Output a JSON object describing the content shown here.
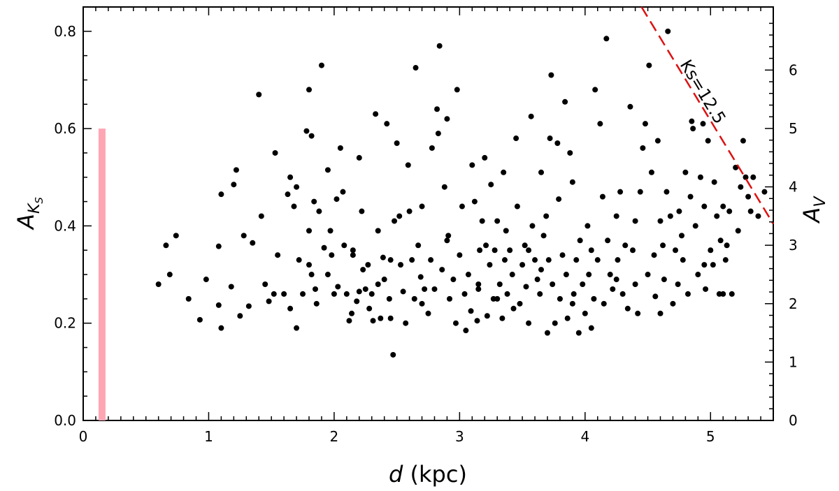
{
  "chart_data": {
    "type": "scatter",
    "title": "",
    "xlabel": {
      "italic": "d",
      "normal": " (kpc)"
    },
    "ylabel_left": {
      "main": "A",
      "sub": "K",
      "subsub": "S"
    },
    "ylabel_right": {
      "main": "A",
      "sub": "V"
    },
    "xlim": [
      0,
      5.5
    ],
    "ylim": [
      0,
      0.85
    ],
    "ylim_right": [
      0,
      7.08
    ],
    "x_ticks": [
      0,
      1,
      2,
      3,
      4,
      5
    ],
    "x_tick_labels": [
      "0",
      "1",
      "2",
      "3",
      "4",
      "5"
    ],
    "y_ticks": [
      0.0,
      0.2,
      0.4,
      0.6,
      0.8
    ],
    "y_tick_labels": [
      "0.0",
      "0.2",
      "0.4",
      "0.6",
      "0.8"
    ],
    "y_right_ticks": [
      0,
      1,
      2,
      3,
      4,
      5,
      6
    ],
    "y_right_tick_labels": [
      "0",
      "1",
      "2",
      "3",
      "4",
      "5",
      "6"
    ],
    "grid": false,
    "colors": {
      "points": "#000000",
      "limit_line": "#dd1111",
      "bar": "#ffa6b4"
    },
    "bar": {
      "x": 0.15,
      "y_from": 0.0,
      "y_to": 0.6
    },
    "limit_line": {
      "x1": 4.45,
      "y1": 0.85,
      "x2": 5.5,
      "y2": 0.404,
      "label": "Ks=12.5"
    },
    "points": [
      [
        0.6,
        0.28
      ],
      [
        0.66,
        0.36
      ],
      [
        0.69,
        0.3
      ],
      [
        0.74,
        0.38
      ],
      [
        0.84,
        0.25
      ],
      [
        0.93,
        0.207
      ],
      [
        0.98,
        0.29
      ],
      [
        1.08,
        0.237
      ],
      [
        1.08,
        0.358
      ],
      [
        1.1,
        0.19
      ],
      [
        1.1,
        0.465
      ],
      [
        1.18,
        0.275
      ],
      [
        1.2,
        0.485
      ],
      [
        1.22,
        0.515
      ],
      [
        1.25,
        0.215
      ],
      [
        1.28,
        0.38
      ],
      [
        1.32,
        0.235
      ],
      [
        1.35,
        0.365
      ],
      [
        1.4,
        0.67
      ],
      [
        1.42,
        0.42
      ],
      [
        1.45,
        0.28
      ],
      [
        1.48,
        0.245
      ],
      [
        1.52,
        0.26
      ],
      [
        1.53,
        0.55
      ],
      [
        1.55,
        0.34
      ],
      [
        1.6,
        0.26
      ],
      [
        1.63,
        0.465
      ],
      [
        1.65,
        0.5
      ],
      [
        1.68,
        0.44
      ],
      [
        1.7,
        0.48
      ],
      [
        1.72,
        0.33
      ],
      [
        1.7,
        0.19
      ],
      [
        1.75,
        0.26
      ],
      [
        1.78,
        0.595
      ],
      [
        1.8,
        0.68
      ],
      [
        1.82,
        0.585
      ],
      [
        1.8,
        0.39
      ],
      [
        1.8,
        0.32
      ],
      [
        1.82,
        0.3
      ],
      [
        1.85,
        0.27
      ],
      [
        1.84,
        0.45
      ],
      [
        1.86,
        0.24
      ],
      [
        1.88,
        0.43
      ],
      [
        1.9,
        0.73
      ],
      [
        1.92,
        0.355
      ],
      [
        1.95,
        0.515
      ],
      [
        1.97,
        0.39
      ],
      [
        1.98,
        0.34
      ],
      [
        2.0,
        0.26
      ],
      [
        2.02,
        0.455
      ],
      [
        2.03,
        0.275
      ],
      [
        2.05,
        0.56
      ],
      [
        2.07,
        0.47
      ],
      [
        2.08,
        0.36
      ],
      [
        2.1,
        0.26
      ],
      [
        2.12,
        0.205
      ],
      [
        2.14,
        0.22
      ],
      [
        2.15,
        0.35
      ],
      [
        2.18,
        0.245
      ],
      [
        2.2,
        0.265
      ],
      [
        2.2,
        0.54
      ],
      [
        2.22,
        0.43
      ],
      [
        2.23,
        0.31
      ],
      [
        2.25,
        0.27
      ],
      [
        2.27,
        0.32
      ],
      [
        2.28,
        0.23
      ],
      [
        2.3,
        0.26
      ],
      [
        2.31,
        0.205
      ],
      [
        2.33,
        0.63
      ],
      [
        2.35,
        0.39
      ],
      [
        2.37,
        0.21
      ],
      [
        2.39,
        0.335
      ],
      [
        2.4,
        0.29
      ],
      [
        2.42,
        0.61
      ],
      [
        2.44,
        0.25
      ],
      [
        2.45,
        0.33
      ],
      [
        2.47,
        0.135
      ],
      [
        2.48,
        0.41
      ],
      [
        2.5,
        0.57
      ],
      [
        2.52,
        0.42
      ],
      [
        2.53,
        0.32
      ],
      [
        2.55,
        0.265
      ],
      [
        2.57,
        0.2
      ],
      [
        2.59,
        0.525
      ],
      [
        2.6,
        0.43
      ],
      [
        2.62,
        0.33
      ],
      [
        2.64,
        0.25
      ],
      [
        2.65,
        0.725
      ],
      [
        2.67,
        0.36
      ],
      [
        2.69,
        0.295
      ],
      [
        2.7,
        0.44
      ],
      [
        2.72,
        0.27
      ],
      [
        2.75,
        0.22
      ],
      [
        2.77,
        0.33
      ],
      [
        2.78,
        0.56
      ],
      [
        2.8,
        0.27
      ],
      [
        2.82,
        0.64
      ],
      [
        2.83,
        0.59
      ],
      [
        2.84,
        0.77
      ],
      [
        2.86,
        0.31
      ],
      [
        2.88,
        0.48
      ],
      [
        2.9,
        0.62
      ],
      [
        2.91,
        0.38
      ],
      [
        2.92,
        0.25
      ],
      [
        2.95,
        0.29
      ],
      [
        2.97,
        0.2
      ],
      [
        2.98,
        0.68
      ],
      [
        3.0,
        0.34
      ],
      [
        3.02,
        0.44
      ],
      [
        3.04,
        0.26
      ],
      [
        3.05,
        0.185
      ],
      [
        3.07,
        0.3
      ],
      [
        3.09,
        0.225
      ],
      [
        3.1,
        0.525
      ],
      [
        3.12,
        0.45
      ],
      [
        3.14,
        0.205
      ],
      [
        3.15,
        0.28
      ],
      [
        3.16,
        0.35
      ],
      [
        3.18,
        0.41
      ],
      [
        3.2,
        0.54
      ],
      [
        3.21,
        0.36
      ],
      [
        3.22,
        0.215
      ],
      [
        3.24,
        0.32
      ],
      [
        3.25,
        0.485
      ],
      [
        3.27,
        0.25
      ],
      [
        3.28,
        0.35
      ],
      [
        3.3,
        0.41
      ],
      [
        3.32,
        0.28
      ],
      [
        3.34,
        0.21
      ],
      [
        3.35,
        0.51
      ],
      [
        3.36,
        0.33
      ],
      [
        3.37,
        0.39
      ],
      [
        3.38,
        0.26
      ],
      [
        3.4,
        0.35
      ],
      [
        3.42,
        0.3
      ],
      [
        3.43,
        0.23
      ],
      [
        3.45,
        0.58
      ],
      [
        3.46,
        0.44
      ],
      [
        3.48,
        0.24
      ],
      [
        3.5,
        0.32
      ],
      [
        3.52,
        0.36
      ],
      [
        3.53,
        0.275
      ],
      [
        3.55,
        0.2
      ],
      [
        3.57,
        0.625
      ],
      [
        3.58,
        0.4
      ],
      [
        3.6,
        0.33
      ],
      [
        3.62,
        0.29
      ],
      [
        3.64,
        0.26
      ],
      [
        3.65,
        0.51
      ],
      [
        3.67,
        0.38
      ],
      [
        3.69,
        0.42
      ],
      [
        3.7,
        0.18
      ],
      [
        3.71,
        0.33
      ],
      [
        3.72,
        0.58
      ],
      [
        3.73,
        0.71
      ],
      [
        3.74,
        0.28
      ],
      [
        3.76,
        0.2
      ],
      [
        3.78,
        0.57
      ],
      [
        3.79,
        0.455
      ],
      [
        3.8,
        0.25
      ],
      [
        3.82,
        0.34
      ],
      [
        3.84,
        0.655
      ],
      [
        3.85,
        0.3
      ],
      [
        3.86,
        0.21
      ],
      [
        3.88,
        0.55
      ],
      [
        3.9,
        0.49
      ],
      [
        3.91,
        0.26
      ],
      [
        3.93,
        0.33
      ],
      [
        3.95,
        0.18
      ],
      [
        3.96,
        0.37
      ],
      [
        3.98,
        0.28
      ],
      [
        4.0,
        0.22
      ],
      [
        4.02,
        0.4
      ],
      [
        4.03,
        0.3
      ],
      [
        4.05,
        0.35
      ],
      [
        4.07,
        0.25
      ],
      [
        4.08,
        0.68
      ],
      [
        4.1,
        0.33
      ],
      [
        4.12,
        0.61
      ],
      [
        4.14,
        0.46
      ],
      [
        4.15,
        0.24
      ],
      [
        4.17,
        0.785
      ],
      [
        4.18,
        0.37
      ],
      [
        4.2,
        0.3
      ],
      [
        4.22,
        0.27
      ],
      [
        4.25,
        0.42
      ],
      [
        4.26,
        0.33
      ],
      [
        4.28,
        0.47
      ],
      [
        4.3,
        0.26
      ],
      [
        4.32,
        0.36
      ],
      [
        4.34,
        0.23
      ],
      [
        4.36,
        0.645
      ],
      [
        4.38,
        0.35
      ],
      [
        4.4,
        0.41
      ],
      [
        4.42,
        0.22
      ],
      [
        4.44,
        0.47
      ],
      [
        4.46,
        0.56
      ],
      [
        4.48,
        0.61
      ],
      [
        4.5,
        0.3
      ],
      [
        4.51,
        0.73
      ],
      [
        4.53,
        0.51
      ],
      [
        4.55,
        0.34
      ],
      [
        4.56,
        0.255
      ],
      [
        4.58,
        0.575
      ],
      [
        4.6,
        0.41
      ],
      [
        4.62,
        0.36
      ],
      [
        4.63,
        0.29
      ],
      [
        4.65,
        0.47
      ],
      [
        4.66,
        0.8
      ],
      [
        4.68,
        0.42
      ],
      [
        4.7,
        0.24
      ],
      [
        4.72,
        0.35
      ],
      [
        4.74,
        0.28
      ],
      [
        4.75,
        0.43
      ],
      [
        4.77,
        0.38
      ],
      [
        4.78,
        0.33
      ],
      [
        4.8,
        0.51
      ],
      [
        4.82,
        0.26
      ],
      [
        4.84,
        0.46
      ],
      [
        4.85,
        0.615
      ],
      [
        4.86,
        0.6
      ],
      [
        4.88,
        0.4
      ],
      [
        4.9,
        0.3
      ],
      [
        4.92,
        0.5
      ],
      [
        4.94,
        0.61
      ],
      [
        4.95,
        0.44
      ],
      [
        4.96,
        0.27
      ],
      [
        4.98,
        0.575
      ],
      [
        5.0,
        0.35
      ],
      [
        5.02,
        0.32
      ],
      [
        5.03,
        0.49
      ],
      [
        5.05,
        0.42
      ],
      [
        5.07,
        0.26
      ],
      [
        5.08,
        0.37
      ],
      [
        5.1,
        0.44
      ],
      [
        5.12,
        0.33
      ],
      [
        5.13,
        0.36
      ],
      [
        5.15,
        0.43
      ],
      [
        5.17,
        0.26
      ],
      [
        5.2,
        0.52
      ],
      [
        5.22,
        0.39
      ],
      [
        5.24,
        0.48
      ],
      [
        5.26,
        0.575
      ],
      [
        5.28,
        0.5
      ],
      [
        5.3,
        0.46
      ],
      [
        5.32,
        0.43
      ],
      [
        5.34,
        0.5
      ],
      [
        5.38,
        0.42
      ],
      [
        5.43,
        0.47
      ],
      [
        5.1,
        0.26
      ],
      [
        4.95,
        0.32
      ],
      [
        4.4,
        0.28
      ],
      [
        3.55,
        0.35
      ],
      [
        2.35,
        0.28
      ],
      [
        1.95,
        0.3
      ],
      [
        2.45,
        0.21
      ],
      [
        3.3,
        0.25
      ],
      [
        4.05,
        0.19
      ],
      [
        2.9,
        0.37
      ],
      [
        3.65,
        0.31
      ],
      [
        4.25,
        0.29
      ],
      [
        2.15,
        0.34
      ],
      [
        1.65,
        0.23
      ],
      [
        3.9,
        0.24
      ],
      [
        4.6,
        0.22
      ],
      [
        2.7,
        0.24
      ],
      [
        3.15,
        0.27
      ]
    ]
  }
}
